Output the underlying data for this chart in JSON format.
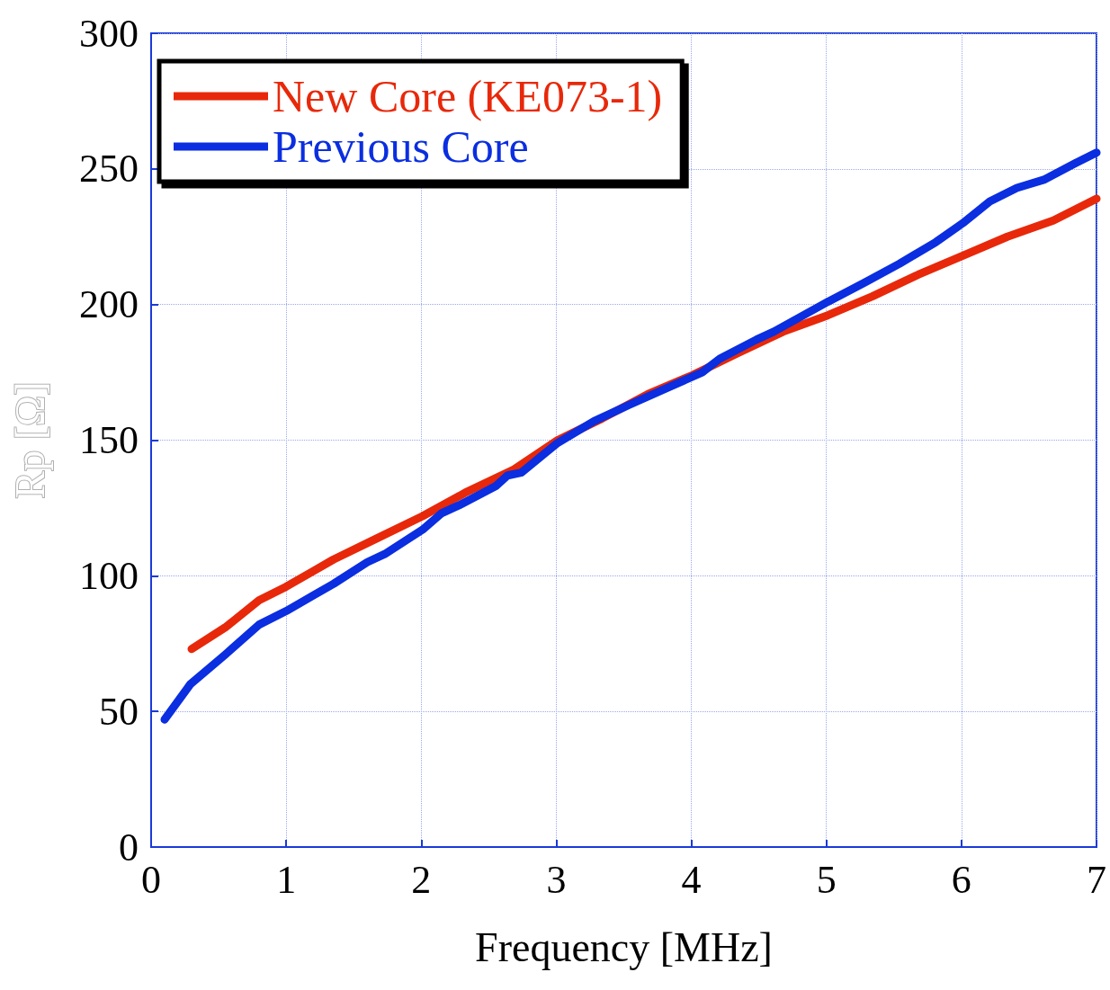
{
  "chart_data": {
    "type": "line",
    "xlabel": "Frequency [MHz]",
    "ylabel": "Rp [Ω]",
    "xlim": [
      0,
      7
    ],
    "xticks": [
      0,
      1,
      2,
      3,
      4,
      5,
      6,
      7
    ],
    "ylim": [
      0,
      300
    ],
    "yticks": [
      0,
      50,
      100,
      150,
      200,
      250,
      300
    ],
    "grid": true,
    "legend": "top left",
    "marker": "none",
    "line_style": "solid",
    "series": [
      {
        "name": "New Core (KE073-1)",
        "color": "#e8280a",
        "x": [
          0.3,
          0.55,
          0.8,
          1.0,
          1.21,
          1.35,
          1.68,
          2.01,
          2.34,
          2.68,
          3.01,
          3.34,
          3.68,
          4.01,
          4.34,
          4.68,
          5.01,
          5.34,
          5.68,
          6.01,
          6.34,
          6.68,
          7.0
        ],
        "values": [
          73,
          81,
          91,
          96,
          102,
          106,
          114,
          122,
          131,
          139,
          150,
          158,
          167,
          174,
          182,
          190,
          196,
          203,
          211,
          218,
          225,
          231,
          239
        ]
      },
      {
        "name": "Previous Core",
        "color": "#0a2ee0",
        "x": [
          0.1,
          0.29,
          0.55,
          0.8,
          1.0,
          1.21,
          1.35,
          1.6,
          1.73,
          2.01,
          2.15,
          2.28,
          2.55,
          2.64,
          2.74,
          3.01,
          3.28,
          3.54,
          3.81,
          4.08,
          4.21,
          4.48,
          4.61,
          5.01,
          5.28,
          5.54,
          5.81,
          6.01,
          6.21,
          6.41,
          6.61,
          6.84,
          7.0
        ],
        "values": [
          47,
          60,
          71,
          82,
          87,
          93,
          97,
          105,
          108,
          117,
          123,
          126,
          133,
          137,
          138,
          149,
          157,
          163,
          169,
          175,
          180,
          187,
          190,
          201,
          208,
          215,
          223,
          230,
          238,
          243,
          246,
          252,
          256
        ]
      }
    ]
  }
}
